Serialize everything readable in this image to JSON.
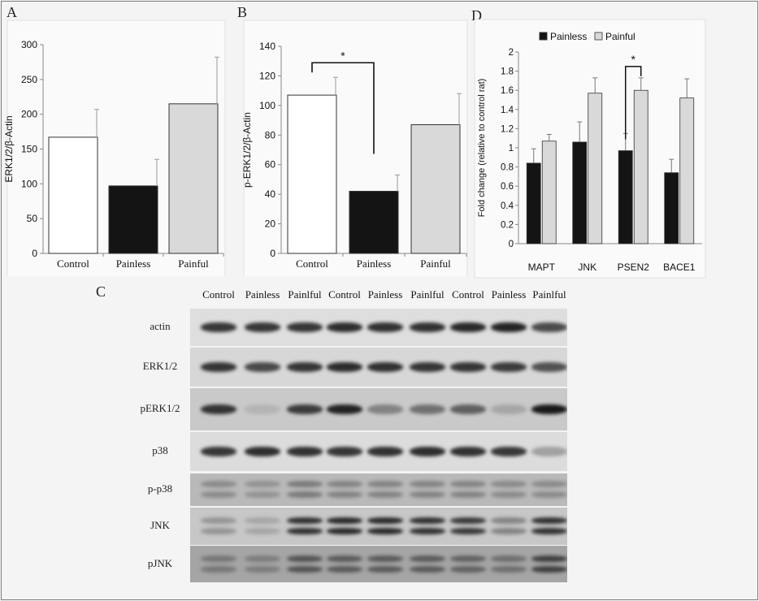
{
  "panels": {
    "A": "A",
    "B": "B",
    "C": "C",
    "D": "D"
  },
  "colors": {
    "control": "#ffffff",
    "painless": "#141414",
    "painful": "#d9d9d9",
    "significance": "#111111"
  },
  "chart_data": [
    {
      "panel": "A",
      "type": "bar",
      "categories": [
        "Control",
        "Painless",
        "Painful"
      ],
      "values": [
        167,
        97,
        215
      ],
      "errors": [
        40,
        38,
        67
      ],
      "ylabel": "ERK1/2/β-Actin",
      "ylim": [
        0,
        300
      ],
      "yticks": [
        0,
        50,
        100,
        150,
        200,
        250,
        300
      ],
      "grid": false
    },
    {
      "panel": "B",
      "type": "bar",
      "categories": [
        "Control",
        "Painless",
        "Painful"
      ],
      "values": [
        107,
        42,
        87
      ],
      "errors": [
        12,
        11,
        21
      ],
      "ylabel": "p-ERK1/2/β-Actin",
      "ylim": [
        0,
        140
      ],
      "yticks": [
        0,
        20,
        40,
        60,
        80,
        100,
        120,
        140
      ],
      "significance": {
        "from": "Control",
        "to": "Painless",
        "label": "*"
      },
      "grid": false
    },
    {
      "panel": "D",
      "type": "bar",
      "categories": [
        "MAPT",
        "JNK",
        "PSEN2",
        "BACE1"
      ],
      "series": [
        {
          "name": "Painless",
          "values": [
            0.84,
            1.06,
            0.97,
            0.74
          ],
          "errors": [
            0.15,
            0.21,
            0.18,
            0.14
          ]
        },
        {
          "name": "Painful",
          "values": [
            1.07,
            1.57,
            1.6,
            1.52
          ],
          "errors": [
            0.07,
            0.16,
            0.13,
            0.2
          ]
        }
      ],
      "ylabel": "Fold change (relative to control rat)",
      "ylim": [
        0,
        2
      ],
      "yticks": [
        "0",
        "0.2",
        "0.4",
        "0.6",
        "0.8",
        "1",
        "1.2",
        "1.4",
        "1.6",
        "1.8",
        "2"
      ],
      "legend": "top",
      "significance": {
        "category": "PSEN2",
        "label": "*"
      },
      "grid": false
    }
  ],
  "blot": {
    "lanes": [
      "Control",
      "Painless",
      "Painlful",
      "Control",
      "Painless",
      "Painlful",
      "Control",
      "Painless",
      "Painlful"
    ],
    "rows": [
      {
        "label": "actin",
        "intensity": [
          0.85,
          0.85,
          0.85,
          0.9,
          0.88,
          0.88,
          0.92,
          0.95,
          0.75
        ],
        "double": false
      },
      {
        "label": "ERK1/2",
        "intensity": [
          0.85,
          0.75,
          0.85,
          0.9,
          0.88,
          0.85,
          0.85,
          0.82,
          0.7
        ],
        "double": false
      },
      {
        "label": "pERK1/2",
        "intensity": [
          0.85,
          0.12,
          0.8,
          0.95,
          0.4,
          0.5,
          0.6,
          0.2,
          1.0
        ],
        "double": false
      },
      {
        "label": "p38",
        "intensity": [
          0.85,
          0.9,
          0.88,
          0.85,
          0.88,
          0.9,
          0.88,
          0.85,
          0.3
        ],
        "double": false
      },
      {
        "label": "p-p38",
        "intensity": [
          0.3,
          0.25,
          0.4,
          0.35,
          0.35,
          0.35,
          0.35,
          0.3,
          0.3
        ],
        "double": true
      },
      {
        "label": "JNK",
        "intensity": [
          0.3,
          0.2,
          0.9,
          0.95,
          0.95,
          0.9,
          0.85,
          0.4,
          0.9
        ],
        "double": true
      },
      {
        "label": "pJNK",
        "intensity": [
          0.35,
          0.3,
          0.6,
          0.55,
          0.55,
          0.55,
          0.5,
          0.4,
          0.75
        ],
        "double": true
      }
    ]
  }
}
